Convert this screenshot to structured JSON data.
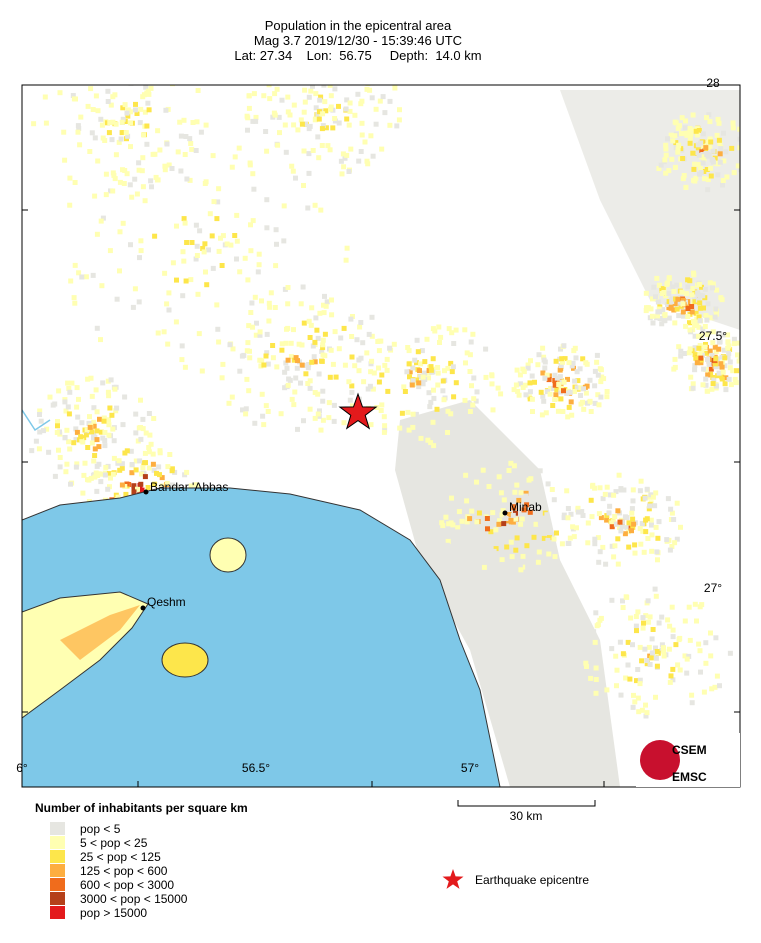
{
  "header": {
    "title": "Population in the epicentral area",
    "line2": "Mag 3.7  2019/12/30 - 15:39:46 UTC",
    "line3": "Lat: 27.34    Lon:  56.75     Depth:  14.0 km"
  },
  "map": {
    "lon_labels": [
      "6°",
      "56.5°",
      "57°"
    ],
    "lat_labels": [
      "28",
      "27.5°",
      "27°"
    ],
    "cities": [
      "Bandar 'Abbas",
      "Minab",
      "Qeshm"
    ]
  },
  "legend": {
    "title": "Number of inhabitants per square km",
    "classes": [
      {
        "label": "pop < 5",
        "color": "#e6e6e1"
      },
      {
        "label": "5 < pop < 25",
        "color": "#ffffb2"
      },
      {
        "label": "25 < pop < 125",
        "color": "#fde64b"
      },
      {
        "label": "125 < pop < 600",
        "color": "#fdae40"
      },
      {
        "label": "600 < pop < 3000",
        "color": "#f06c1c"
      },
      {
        "label": "3000 < pop < 15000",
        "color": "#b5401a"
      },
      {
        "label": "pop > 15000",
        "color": "#e31a1c"
      }
    ]
  },
  "scale_bar": "30 km",
  "epicentre_label": "Earthquake epicentre",
  "logo": [
    "CSEM",
    "EMSC"
  ]
}
